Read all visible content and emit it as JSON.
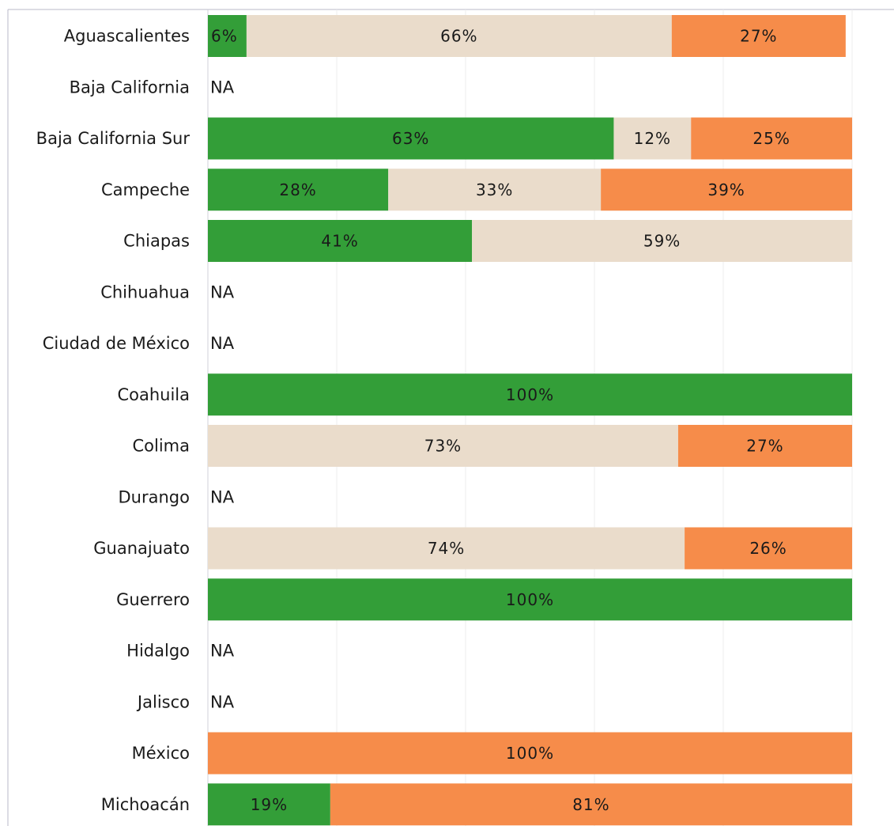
{
  "chart_data": {
    "type": "bar",
    "orientation": "horizontal",
    "stacked": true,
    "normalized": true,
    "categories": [
      "Aguascalientes",
      "Baja California",
      "Baja California Sur",
      "Campeche",
      "Chiapas",
      "Chihuahua",
      "Ciudad de México",
      "Coahuila",
      "Colima",
      "Durango",
      "Guanajuato",
      "Guerrero",
      "Hidalgo",
      "Jalisco",
      "México",
      "Michoacán"
    ],
    "series": [
      {
        "color": "#339e38",
        "values": [
          6,
          null,
          63,
          28,
          41,
          null,
          null,
          100,
          0,
          null,
          0,
          100,
          null,
          null,
          0,
          19
        ],
        "labels": [
          "6%",
          "",
          "63%",
          "28%",
          "41%",
          "",
          "",
          "100%",
          "",
          "",
          "",
          "100%",
          "",
          "",
          "",
          "19%"
        ]
      },
      {
        "color": "#eadccb",
        "values": [
          66,
          null,
          12,
          33,
          59,
          null,
          null,
          0,
          73,
          null,
          74,
          0,
          null,
          null,
          0,
          0
        ],
        "labels": [
          "66%",
          "",
          "12%",
          "33%",
          "59%",
          "",
          "",
          "",
          "73%",
          "",
          "74%",
          "",
          "",
          "",
          "",
          ""
        ]
      },
      {
        "color": "#f68c4a",
        "values": [
          27,
          null,
          25,
          39,
          0,
          null,
          null,
          0,
          27,
          null,
          26,
          0,
          null,
          null,
          100,
          81
        ],
        "labels": [
          "27%",
          "",
          "25%",
          "39%",
          "",
          "",
          "",
          "",
          "27%",
          "",
          "26%",
          "",
          "",
          "",
          "100%",
          "81%"
        ]
      }
    ],
    "na_label": "NA",
    "xlim": [
      0,
      100
    ],
    "grid": true,
    "legend": "none",
    "title": "",
    "xlabel": "",
    "ylabel": ""
  },
  "colors": {
    "grid": "#ececec",
    "axis": "#b9b9c9",
    "text": "#1a1a1a"
  }
}
